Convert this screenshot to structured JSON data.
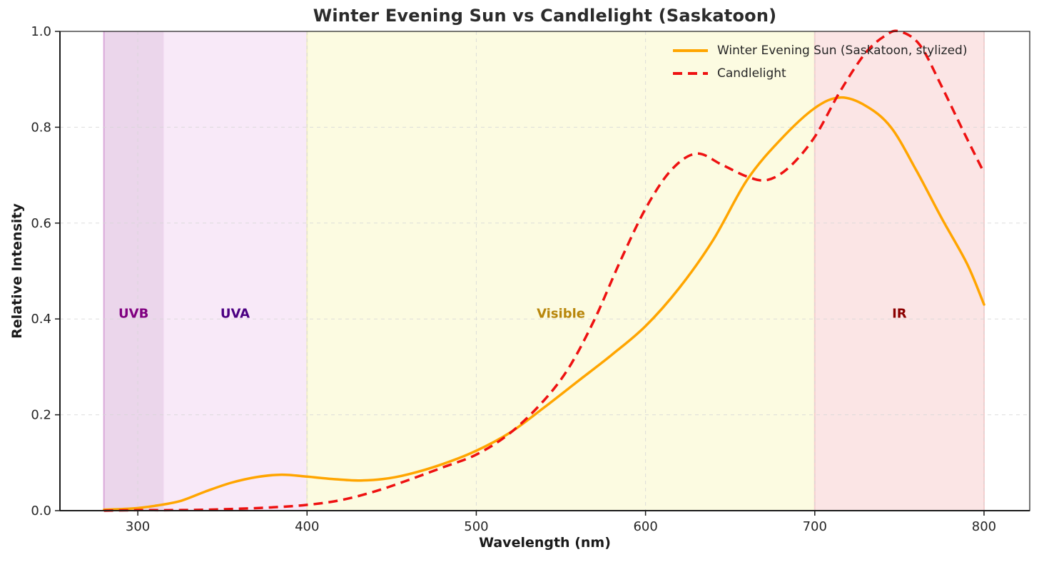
{
  "chart_data": {
    "type": "line",
    "title": "Winter Evening Sun vs Candlelight (Saskatoon)",
    "xlabel": "Wavelength (nm)",
    "ylabel": "Relative Intensity",
    "xlim": [
      254,
      827
    ],
    "ylim": [
      0,
      1.0
    ],
    "x_ticks": [
      300,
      400,
      500,
      600,
      700,
      800
    ],
    "y_ticks": [
      {
        "v": 0.0,
        "label": "0.0"
      },
      {
        "v": 0.2,
        "label": "0.2"
      },
      {
        "v": 0.4,
        "label": "0.4"
      },
      {
        "v": 0.6,
        "label": "0.6"
      },
      {
        "v": 0.8,
        "label": "0.8"
      },
      {
        "v": 1.0,
        "label": "1.0"
      }
    ],
    "grid": true,
    "legend_position": "upper right",
    "series": [
      {
        "name": "Winter Evening Sun (Saskatoon, stylized)",
        "color": "#ffa500",
        "style": "solid",
        "line_width": 3.5,
        "points": [
          [
            280,
            0.002
          ],
          [
            295,
            0.004
          ],
          [
            310,
            0.01
          ],
          [
            325,
            0.02
          ],
          [
            340,
            0.04
          ],
          [
            355,
            0.058
          ],
          [
            370,
            0.07
          ],
          [
            385,
            0.075
          ],
          [
            400,
            0.071
          ],
          [
            415,
            0.066
          ],
          [
            430,
            0.063
          ],
          [
            445,
            0.066
          ],
          [
            460,
            0.076
          ],
          [
            480,
            0.097
          ],
          [
            500,
            0.125
          ],
          [
            520,
            0.163
          ],
          [
            540,
            0.215
          ],
          [
            560,
            0.27
          ],
          [
            580,
            0.325
          ],
          [
            600,
            0.385
          ],
          [
            620,
            0.465
          ],
          [
            640,
            0.565
          ],
          [
            660,
            0.69
          ],
          [
            680,
            0.775
          ],
          [
            700,
            0.84
          ],
          [
            715,
            0.862
          ],
          [
            730,
            0.845
          ],
          [
            745,
            0.8
          ],
          [
            760,
            0.71
          ],
          [
            775,
            0.61
          ],
          [
            790,
            0.515
          ],
          [
            800,
            0.43
          ]
        ]
      },
      {
        "name": "Candlelight",
        "color": "#ee1111",
        "style": "dashed",
        "line_width": 3.5,
        "points": [
          [
            280,
            0.0
          ],
          [
            300,
            0.001
          ],
          [
            320,
            0.001
          ],
          [
            340,
            0.002
          ],
          [
            360,
            0.004
          ],
          [
            380,
            0.007
          ],
          [
            400,
            0.012
          ],
          [
            420,
            0.022
          ],
          [
            440,
            0.04
          ],
          [
            460,
            0.064
          ],
          [
            480,
            0.09
          ],
          [
            500,
            0.117
          ],
          [
            520,
            0.162
          ],
          [
            540,
            0.23
          ],
          [
            555,
            0.3
          ],
          [
            570,
            0.4
          ],
          [
            585,
            0.52
          ],
          [
            600,
            0.63
          ],
          [
            615,
            0.71
          ],
          [
            630,
            0.745
          ],
          [
            645,
            0.722
          ],
          [
            660,
            0.697
          ],
          [
            672,
            0.69
          ],
          [
            685,
            0.717
          ],
          [
            700,
            0.78
          ],
          [
            715,
            0.875
          ],
          [
            730,
            0.955
          ],
          [
            742,
            0.992
          ],
          [
            750,
            1.0
          ],
          [
            762,
            0.972
          ],
          [
            775,
            0.885
          ],
          [
            788,
            0.79
          ],
          [
            800,
            0.705
          ]
        ]
      }
    ],
    "bands": [
      {
        "label": "UVB",
        "from": 280,
        "to": 315,
        "fill": "#ebd6eb",
        "edge": "#daa8da",
        "label_color": "#800080"
      },
      {
        "label": "UVA",
        "from": 315,
        "to": 400,
        "fill": "#f8e9f8",
        "edge": "#efd9ef",
        "label_color": "#4b0082"
      },
      {
        "label": "Visible",
        "from": 400,
        "to": 700,
        "fill": "#fcfbe1",
        "edge": "#f2efc9",
        "label_color": "#b8860b"
      },
      {
        "label": "IR",
        "from": 700,
        "to": 800,
        "fill": "#fbe5e5",
        "edge": "#f4cfcf",
        "label_color": "#8b0000"
      }
    ],
    "band_label_y": 0.41
  },
  "colors": {
    "grid": "#d8d8d8",
    "spine": "#1a1a1a",
    "tick_text": "#262626",
    "title_text": "#2b2b2b"
  }
}
